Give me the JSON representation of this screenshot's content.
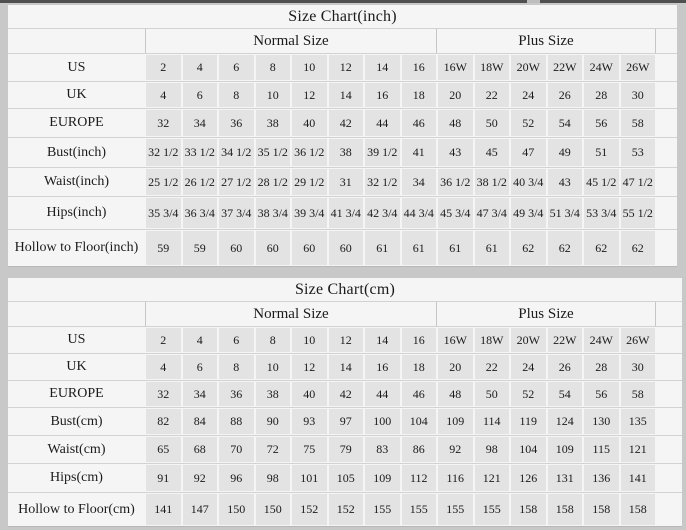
{
  "colors": {
    "page_background": "#c8c8c8",
    "table_background": "#f5f5f5",
    "data_cell_background": "#e3e3e3",
    "text": "#1b1b1b",
    "top_bar": "#4f4f4f"
  },
  "chart_data": [
    {
      "type": "table",
      "title": "Size Chart(inch)",
      "column_groups": [
        {
          "label": "Normal Size",
          "span": 8
        },
        {
          "label": "Plus Size",
          "span": 6
        }
      ],
      "rows": [
        {
          "label": "US",
          "values": [
            "2",
            "4",
            "6",
            "8",
            "10",
            "12",
            "14",
            "16",
            "16W",
            "18W",
            "20W",
            "22W",
            "24W",
            "26W"
          ]
        },
        {
          "label": "UK",
          "values": [
            "4",
            "6",
            "8",
            "10",
            "12",
            "14",
            "16",
            "18",
            "20",
            "22",
            "24",
            "26",
            "28",
            "30"
          ]
        },
        {
          "label": "EUROPE",
          "values": [
            "32",
            "34",
            "36",
            "38",
            "40",
            "42",
            "44",
            "46",
            "48",
            "50",
            "52",
            "54",
            "56",
            "58"
          ]
        },
        {
          "label": "Bust(inch)",
          "values": [
            "32 1/2",
            "33 1/2",
            "34 1/2",
            "35 1/2",
            "36 1/2",
            "38",
            "39 1/2",
            "41",
            "43",
            "45",
            "47",
            "49",
            "51",
            "53"
          ]
        },
        {
          "label": "Waist(inch)",
          "values": [
            "25 1/2",
            "26 1/2",
            "27 1/2",
            "28 1/2",
            "29 1/2",
            "31",
            "32 1/2",
            "34",
            "36 1/2",
            "38 1/2",
            "40 3/4",
            "43",
            "45 1/2",
            "47 1/2"
          ]
        },
        {
          "label": "Hips(inch)",
          "values": [
            "35 3/4",
            "36 3/4",
            "37 3/4",
            "38 3/4",
            "39 3/4",
            "41 3/4",
            "42 3/4",
            "44 3/4",
            "45 3/4",
            "47 3/4",
            "49 3/4",
            "51 3/4",
            "53 3/4",
            "55 1/2"
          ]
        },
        {
          "label": "Hollow to Floor(inch)",
          "values": [
            "59",
            "59",
            "60",
            "60",
            "60",
            "60",
            "61",
            "61",
            "61",
            "61",
            "62",
            "62",
            "62",
            "62"
          ]
        }
      ]
    },
    {
      "type": "table",
      "title": "Size Chart(cm)",
      "column_groups": [
        {
          "label": "Normal Size",
          "span": 8
        },
        {
          "label": "Plus Size",
          "span": 6
        }
      ],
      "rows": [
        {
          "label": "US",
          "values": [
            "2",
            "4",
            "6",
            "8",
            "10",
            "12",
            "14",
            "16",
            "16W",
            "18W",
            "20W",
            "22W",
            "24W",
            "26W"
          ]
        },
        {
          "label": "UK",
          "values": [
            "4",
            "6",
            "8",
            "10",
            "12",
            "14",
            "16",
            "18",
            "20",
            "22",
            "24",
            "26",
            "28",
            "30"
          ]
        },
        {
          "label": "EUROPE",
          "values": [
            "32",
            "34",
            "36",
            "38",
            "40",
            "42",
            "44",
            "46",
            "48",
            "50",
            "52",
            "54",
            "56",
            "58"
          ]
        },
        {
          "label": "Bust(cm)",
          "values": [
            "82",
            "84",
            "88",
            "90",
            "93",
            "97",
            "100",
            "104",
            "109",
            "114",
            "119",
            "124",
            "130",
            "135"
          ]
        },
        {
          "label": "Waist(cm)",
          "values": [
            "65",
            "68",
            "70",
            "72",
            "75",
            "79",
            "83",
            "86",
            "92",
            "98",
            "104",
            "109",
            "115",
            "121"
          ]
        },
        {
          "label": "Hips(cm)",
          "values": [
            "91",
            "92",
            "96",
            "98",
            "101",
            "105",
            "109",
            "112",
            "116",
            "121",
            "126",
            "131",
            "136",
            "141"
          ]
        },
        {
          "label": "Hollow to Floor(cm)",
          "values": [
            "141",
            "147",
            "150",
            "150",
            "152",
            "152",
            "155",
            "155",
            "155",
            "155",
            "158",
            "158",
            "158",
            "158"
          ]
        }
      ]
    }
  ]
}
